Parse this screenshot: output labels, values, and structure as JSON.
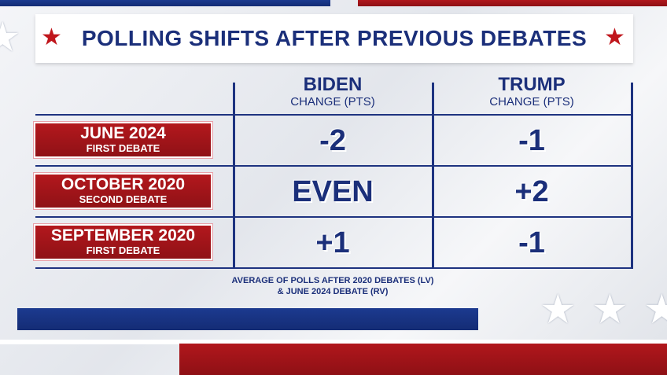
{
  "title": "POLLING SHIFTS AFTER PREVIOUS DEBATES",
  "table": {
    "columns": [
      {
        "name": "BIDEN",
        "sub": "CHANGE (PTS)"
      },
      {
        "name": "TRUMP",
        "sub": "CHANGE (PTS)"
      }
    ],
    "rows": [
      {
        "label": "JUNE 2024",
        "sub": "FIRST DEBATE",
        "cells": [
          "-2",
          "-1"
        ]
      },
      {
        "label": "OCTOBER 2020",
        "sub": "SECOND DEBATE",
        "cells": [
          "EVEN",
          "+2"
        ]
      },
      {
        "label": "SEPTEMBER 2020",
        "sub": "FIRST DEBATE",
        "cells": [
          "+1",
          "-1"
        ]
      }
    ]
  },
  "footnote": [
    "AVERAGE OF POLLS AFTER 2020 DEBATES (LV)",
    "& JUNE 2024 DEBATE (RV)"
  ]
}
